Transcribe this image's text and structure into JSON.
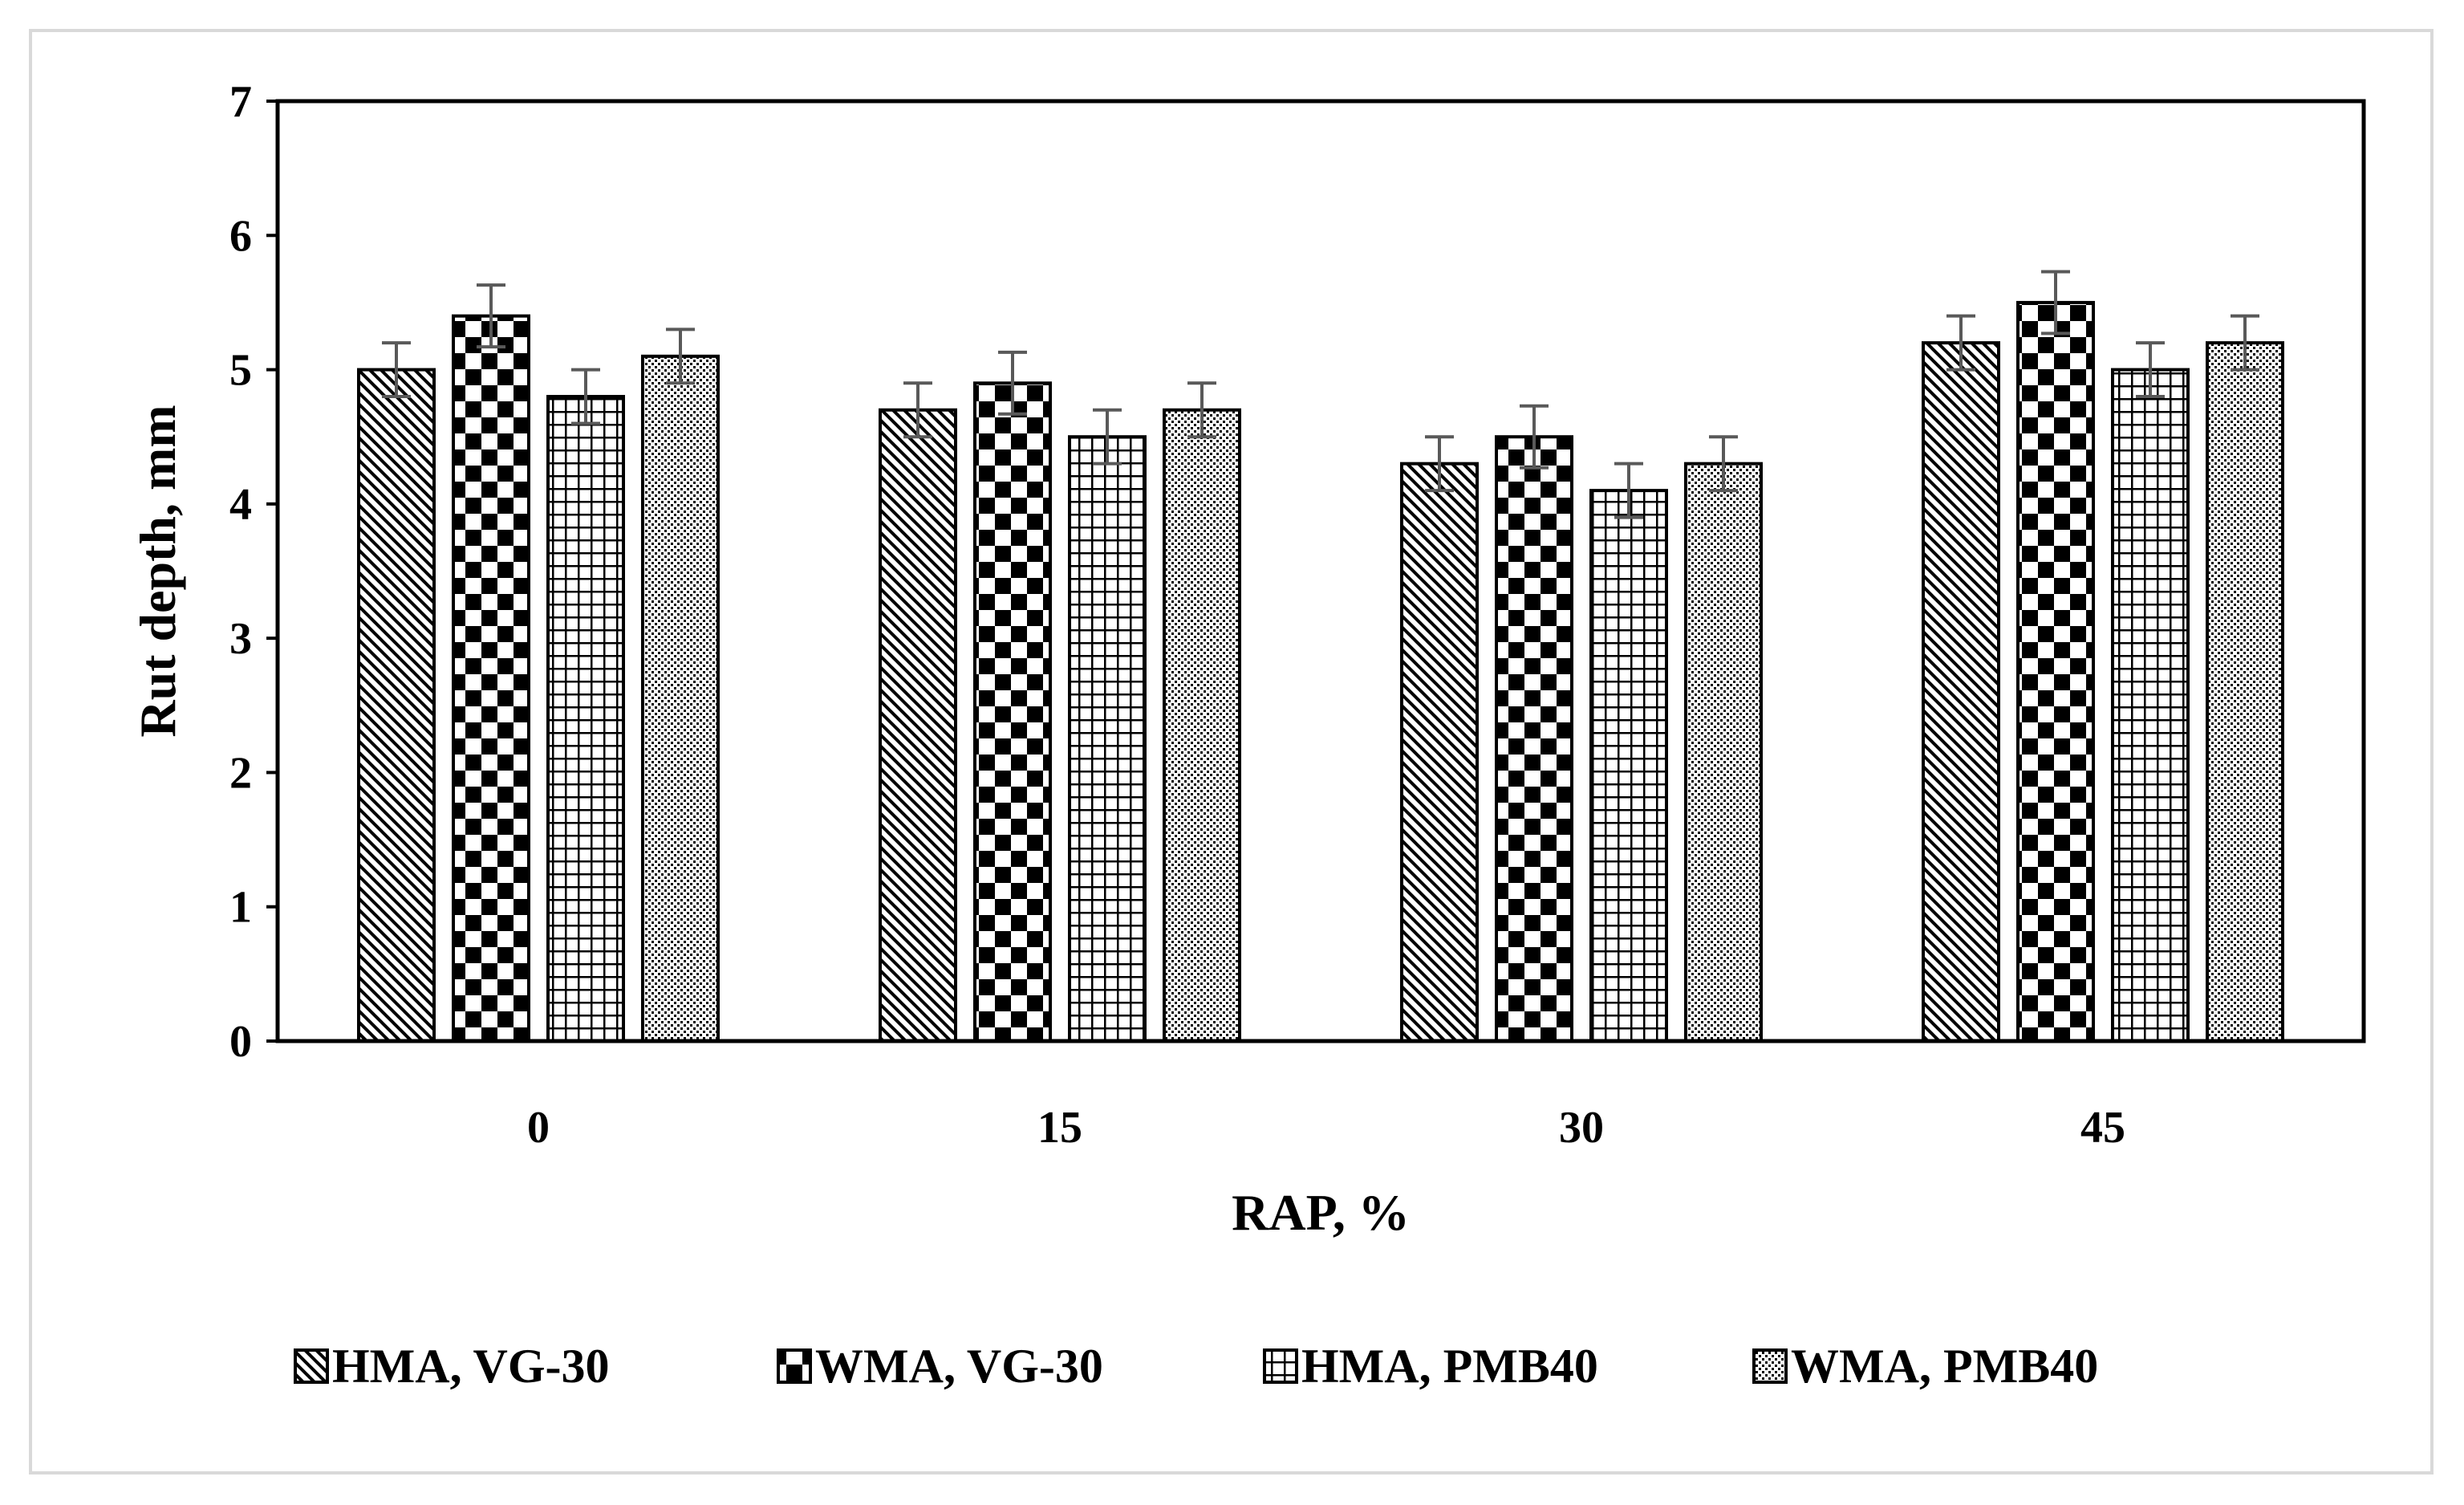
{
  "chart_data": {
    "type": "bar",
    "title": "",
    "xlabel": "RAP, %",
    "ylabel": "Rut depth, mm",
    "ylim": [
      0,
      7
    ],
    "yticks": [
      "0",
      "1",
      "2",
      "3",
      "4",
      "5",
      "6",
      "7"
    ],
    "categories": [
      "0",
      "15",
      "30",
      "45"
    ],
    "legend_position": "bottom",
    "grid": false,
    "series": [
      {
        "name": "HMA, VG-30",
        "pattern": "diagonal",
        "values": [
          5.0,
          4.7,
          4.3,
          5.2
        ],
        "errors": [
          0.2,
          0.2,
          0.2,
          0.2
        ]
      },
      {
        "name": "WMA, VG-30",
        "pattern": "checker",
        "values": [
          5.4,
          4.9,
          4.5,
          5.5
        ],
        "errors": [
          0.23,
          0.23,
          0.23,
          0.23
        ]
      },
      {
        "name": "HMA, PMB40",
        "pattern": "grid",
        "values": [
          4.8,
          4.5,
          4.1,
          5.0
        ],
        "errors": [
          0.2,
          0.2,
          0.2,
          0.2
        ]
      },
      {
        "name": "WMA, PMB40",
        "pattern": "dots",
        "values": [
          5.1,
          4.7,
          4.3,
          5.2
        ],
        "errors": [
          0.2,
          0.2,
          0.2,
          0.2
        ]
      }
    ]
  },
  "colors": {
    "bar_edge": "#000000",
    "error_bar": "#595959",
    "frame": "#d9d9d9"
  }
}
